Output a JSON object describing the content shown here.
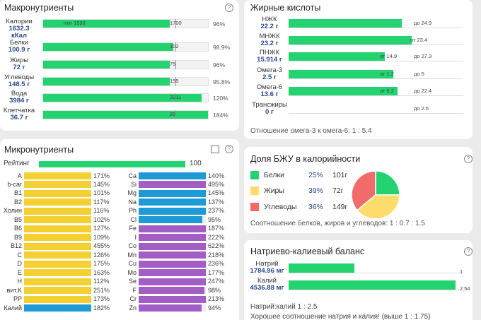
{
  "macronutrients": {
    "title": "Макронутриенты",
    "rows": [
      {
        "name": "Калории",
        "value": 1632.3,
        "unit": "кКал",
        "min": {
          "value": 1598,
          "label": "min 1598"
        },
        "norm": 1700,
        "percent": {
          "value": 96,
          "label": "96%"
        }
      },
      {
        "name": "Белки",
        "value": 100.9,
        "unit": "г",
        "norm": 102,
        "percent": {
          "value": 98.9,
          "label": "98.9%"
        }
      },
      {
        "name": "Жиры",
        "value": 72,
        "unit": "г",
        "norm": 75,
        "percent": {
          "value": 96,
          "label": "96%"
        }
      },
      {
        "name": "Углеводы",
        "value": 148.5,
        "unit": "г",
        "norm": 155,
        "percent": {
          "value": 95.8,
          "label": "95.8%"
        }
      },
      {
        "name": "Вода",
        "value": 3984,
        "unit": "г",
        "norm": 3311,
        "percent": {
          "value": 120,
          "label": "120%"
        }
      },
      {
        "name": "Клетчатка",
        "value": 36.7,
        "unit": "г",
        "norm": 20,
        "percent": {
          "value": 184,
          "label": "184%"
        }
      }
    ]
  },
  "fatty_acids": {
    "title": "Жирные кислоты",
    "rows": [
      {
        "name": "НЖК",
        "value": 22.2,
        "unit": "г",
        "max": {
          "value": 24.9,
          "label": "до 24.9"
        }
      },
      {
        "name": "МНЖК",
        "value": 23.2,
        "unit": "г",
        "min": {
          "value": 23.4,
          "label": "от 23.4"
        }
      },
      {
        "name": "ПНЖК",
        "value": 15.914,
        "unit": "г",
        "min": {
          "value": 14.9,
          "label": "от 14.9"
        },
        "max": {
          "value": 27.3,
          "label": "до 27.3"
        }
      },
      {
        "name": "Омега-3",
        "value": 2.5,
        "unit": "г",
        "min": {
          "value": 1.2,
          "label": "от 1.2"
        },
        "max": {
          "value": 5,
          "label": "до 5"
        }
      },
      {
        "name": "Омега-6",
        "value": 13.6,
        "unit": "г",
        "min": {
          "value": 6.2,
          "label": "от 6.2"
        },
        "max": {
          "value": 22.4,
          "label": "до 22.4"
        }
      },
      {
        "name": "Трансжиры",
        "value": 0,
        "unit": "г",
        "max": {
          "value": 2.5,
          "label": "до 2.5"
        }
      }
    ],
    "footer": "Отношение омега-3 к омега-6: 1 : 5.4"
  },
  "micronutrients": {
    "title": "Микронутриенты",
    "rating": {
      "label": "Рейтинг",
      "value": 100
    },
    "columns": [
      [
        {
          "name": "A",
          "percent": {
            "value": 171,
            "label": "171%"
          },
          "color": "#f5d032"
        },
        {
          "name": "b-car",
          "percent": {
            "value": 145,
            "label": "145%"
          },
          "color": "#f5d032"
        },
        {
          "name": "B1",
          "percent": {
            "value": 101,
            "label": "101%"
          },
          "color": "#f5d032"
        },
        {
          "name": "B2",
          "percent": {
            "value": 117,
            "label": "117%"
          },
          "color": "#f5d032"
        },
        {
          "name": "Холин",
          "percent": {
            "value": 116,
            "label": "116%"
          },
          "color": "#f5d032"
        },
        {
          "name": "B5",
          "percent": {
            "value": 102,
            "label": "102%"
          },
          "color": "#f5d032"
        },
        {
          "name": "B6",
          "percent": {
            "value": 127,
            "label": "127%"
          },
          "color": "#f5d032"
        },
        {
          "name": "B9",
          "percent": {
            "value": 109,
            "label": "109%"
          },
          "color": "#f5d032"
        },
        {
          "name": "B12",
          "percent": {
            "value": 455,
            "label": "455%"
          },
          "color": "#f5d032"
        },
        {
          "name": "C",
          "percent": {
            "value": 126,
            "label": "126%"
          },
          "color": "#f5d032"
        },
        {
          "name": "D",
          "percent": {
            "value": 175,
            "label": "175%"
          },
          "color": "#f5d032"
        },
        {
          "name": "E",
          "percent": {
            "value": 163,
            "label": "163%"
          },
          "color": "#f5d032"
        },
        {
          "name": "H",
          "percent": {
            "value": 112,
            "label": "112%"
          },
          "color": "#f5d032"
        },
        {
          "name": "вит.K",
          "percent": {
            "value": 251,
            "label": "251%"
          },
          "color": "#f5d032"
        },
        {
          "name": "PP",
          "percent": {
            "value": 173,
            "label": "173%"
          },
          "color": "#f5d032"
        },
        {
          "name": "Калий",
          "percent": {
            "value": 182,
            "label": "182%"
          },
          "color": "#1e9bd7"
        }
      ],
      [
        {
          "name": "Ca",
          "percent": {
            "value": 140,
            "label": "140%"
          },
          "color": "#1e9bd7"
        },
        {
          "name": "Si",
          "percent": {
            "value": 495,
            "label": "495%"
          },
          "color": "#a35ec6"
        },
        {
          "name": "Mg",
          "percent": {
            "value": 145,
            "label": "145%"
          },
          "color": "#1e9bd7"
        },
        {
          "name": "Na",
          "percent": {
            "value": 137,
            "label": "137%"
          },
          "color": "#1e9bd7"
        },
        {
          "name": "Ph",
          "percent": {
            "value": 237,
            "label": "237%"
          },
          "color": "#1e9bd7"
        },
        {
          "name": "Cl",
          "percent": {
            "value": 95,
            "label": "95%"
          },
          "color": "#1e9bd7"
        },
        {
          "name": "Fe",
          "percent": {
            "value": 187,
            "label": "187%"
          },
          "color": "#a35ec6"
        },
        {
          "name": "I",
          "percent": {
            "value": 222,
            "label": "222%"
          },
          "color": "#a35ec6"
        },
        {
          "name": "Co",
          "percent": {
            "value": 622,
            "label": "622%"
          },
          "color": "#a35ec6"
        },
        {
          "name": "Mn",
          "percent": {
            "value": 218,
            "label": "218%"
          },
          "color": "#a35ec6"
        },
        {
          "name": "Cu",
          "percent": {
            "value": 236,
            "label": "236%"
          },
          "color": "#a35ec6"
        },
        {
          "name": "Mo",
          "percent": {
            "value": 177,
            "label": "177%"
          },
          "color": "#a35ec6"
        },
        {
          "name": "Se",
          "percent": {
            "value": 247,
            "label": "247%"
          },
          "color": "#a35ec6"
        },
        {
          "name": "F",
          "percent": {
            "value": 98,
            "label": "98%"
          },
          "color": "#a35ec6"
        },
        {
          "name": "Cr",
          "percent": {
            "value": 213,
            "label": "213%"
          },
          "color": "#a35ec6"
        },
        {
          "name": "Zn",
          "percent": {
            "value": 94,
            "label": "94%"
          },
          "color": "#a35ec6"
        }
      ]
    ]
  },
  "macro_share": {
    "title": "Доля БЖУ в калорийности",
    "items": [
      {
        "name": "Белки",
        "color": "#22d36f",
        "percent": {
          "value": 25,
          "label": "25%"
        },
        "grams": {
          "value": 101,
          "label": "101г"
        }
      },
      {
        "name": "Жиры",
        "color": "#fddc6c",
        "percent": {
          "value": 39,
          "label": "39%"
        },
        "grams": {
          "value": 72,
          "label": "72г"
        }
      },
      {
        "name": "Углеводы",
        "color": "#f26b6b",
        "percent": {
          "value": 36,
          "label": "36%"
        },
        "grams": {
          "value": 149,
          "label": "149г"
        }
      }
    ],
    "footer": "Соотношение белков, жиров и углеводов: 1 : 0.7 : 1.5"
  },
  "sodium_potassium": {
    "title": "Натриево-калиевый баланс",
    "rows": [
      {
        "name": "Натрий",
        "value": 1784.96,
        "unit": "мг",
        "ratio": 1
      },
      {
        "name": "Калий",
        "value": 4536.88,
        "unit": "мг",
        "ratio": 2.54
      }
    ],
    "ratio_text": "Натрий:калий 1 : 2.5",
    "note": "Хорошее соотношение натрия и калия! (выше 1 : 1.75)"
  }
}
